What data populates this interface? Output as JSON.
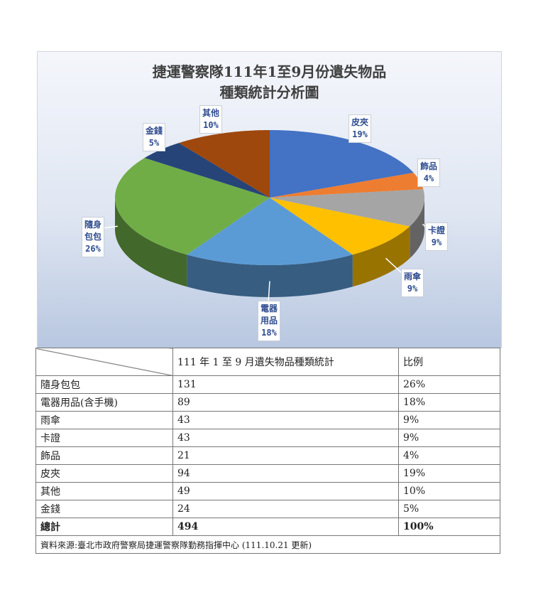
{
  "chart_data": {
    "type": "pie",
    "title": "捷運警察隊111年1至9月份遺失物品\n種類統計分析圖",
    "title_lines": [
      "捷運警察隊111年1至9月份遺失物品",
      "種類統計分析圖"
    ],
    "three_d": true,
    "slices": [
      {
        "label": "皮夾",
        "percent": 19,
        "label_text": "19%",
        "color": "#4472c4"
      },
      {
        "label": "飾品",
        "percent": 4,
        "label_text": "4%",
        "color": "#ed7d31"
      },
      {
        "label": "卡證",
        "percent": 9,
        "label_text": "9%",
        "color": "#a5a5a5"
      },
      {
        "label": "雨傘",
        "percent": 9,
        "label_text": "9%",
        "color": "#ffc000"
      },
      {
        "label": "電器用品",
        "percent": 18,
        "label_text": "18%",
        "color": "#5b9bd5"
      },
      {
        "label": "隨身包包",
        "percent": 26,
        "label_text": "26%",
        "color": "#70ad47"
      },
      {
        "label": "金錢",
        "percent": 5,
        "label_text": "5%",
        "color": "#264478"
      },
      {
        "label": "其他",
        "percent": 10,
        "label_text": "10%",
        "color": "#9e480e"
      }
    ]
  },
  "table": {
    "header": [
      "",
      "111 年 1 至 9 月遺失物品種類統計",
      "比例"
    ],
    "rows": [
      [
        "隨身包包",
        "131",
        "26%"
      ],
      [
        "電器用品(含手機)",
        "89",
        "18%"
      ],
      [
        "雨傘",
        "43",
        "9%"
      ],
      [
        "卡證",
        "43",
        "9%"
      ],
      [
        "飾品",
        "21",
        "4%"
      ],
      [
        "皮夾",
        "94",
        "19%"
      ],
      [
        "其他",
        "49",
        "10%"
      ],
      [
        "金錢",
        "24",
        "5%"
      ]
    ],
    "total": [
      "總計",
      "494",
      "100%"
    ],
    "source": "資料來源:臺北市政府警察局捷運警察隊勤務指揮中心 (111.10.21 更新)"
  }
}
